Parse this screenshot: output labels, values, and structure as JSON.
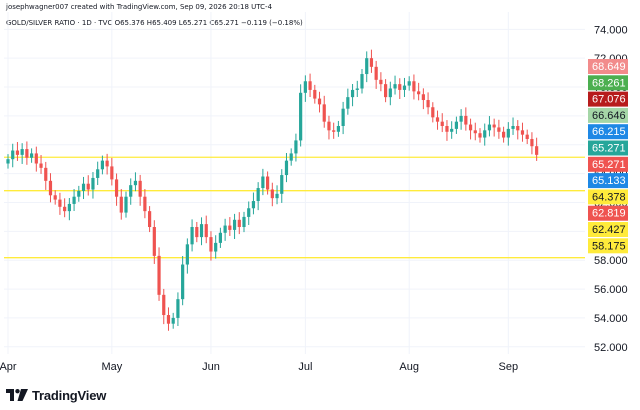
{
  "header": {
    "credit": "josephwagner007 created with TradingView.com, Sep 09, 2026 20:18 UTC-4",
    "symbol": "GOLD/SILVER RATIO · 1D · TVC",
    "ohlc": "O65.376 H65.409 L65.271 C65.271 −0.119 (−0.18%)"
  },
  "brand": {
    "name": "TradingView",
    "logo_icon": "tradingview-logo-icon"
  },
  "chart_data": {
    "type": "candlestick",
    "title": "",
    "ylim": [
      51.5,
      75.2
    ],
    "y_ticks": [
      "52.000",
      "54.000",
      "56.000",
      "58.000",
      "60.000",
      "62.000",
      "64.000",
      "66.000",
      "68.000",
      "70.000",
      "72.000",
      "74.000"
    ],
    "x_labels": [
      {
        "label": "Apr",
        "index": 0
      },
      {
        "label": "May",
        "index": 22
      },
      {
        "label": "Jun",
        "index": 43
      },
      {
        "label": "Jul",
        "index": 63
      },
      {
        "label": "Aug",
        "index": 85
      },
      {
        "label": "Sep",
        "index": 106
      }
    ],
    "up_color": "#26a69a",
    "down_color": "#ef5350",
    "close": [
      65.0,
      65.6,
      65.3,
      65.7,
      65.1,
      65.4,
      64.7,
      64.4,
      63.5,
      62.5,
      62.2,
      61.7,
      61.4,
      61.9,
      62.4,
      62.8,
      63.3,
      62.9,
      63.7,
      64.3,
      64.9,
      64.5,
      63.6,
      62.4,
      61.3,
      62.4,
      63.2,
      63.5,
      62.4,
      61.4,
      60.3,
      58.3,
      55.6,
      54.2,
      53.6,
      54.0,
      55.3,
      57.7,
      59.1,
      60.3,
      59.6,
      60.5,
      59.6,
      58.6,
      59.2,
      59.9,
      60.4,
      60.1,
      60.8,
      60.3,
      61.0,
      61.6,
      62.1,
      63.0,
      63.8,
      62.9,
      62.3,
      62.6,
      63.9,
      64.9,
      65.4,
      66.3,
      69.6,
      70.4,
      69.8,
      69.2,
      68.8,
      67.6,
      67.0,
      66.9,
      67.3,
      68.5,
      69.3,
      69.8,
      69.9,
      70.9,
      72.0,
      71.4,
      70.5,
      70.2,
      69.3,
      69.9,
      70.2,
      69.8,
      70.1,
      70.4,
      69.7,
      69.5,
      69.1,
      68.6,
      67.9,
      67.6,
      67.3,
      66.9,
      67.1,
      67.6,
      68.0,
      67.4,
      67.0,
      66.8,
      66.5,
      67.0,
      67.4,
      67.2,
      66.9,
      66.5,
      67.1,
      67.3,
      67.0,
      66.7,
      66.4,
      65.9,
      65.3
    ],
    "price_labels": [
      {
        "value": 68.649,
        "label": "68.649",
        "color": "#f28b8b"
      },
      {
        "value": 68.261,
        "label": "68.261",
        "color": "#4caf50"
      },
      {
        "value": 67.076,
        "label": "67.076",
        "color": "#b71c1c"
      },
      {
        "value": 66.646,
        "label": "66.646",
        "color": "#a5d6a7"
      },
      {
        "value": 66.215,
        "label": "66.215",
        "color": "#1e88e5"
      },
      {
        "value": 65.271,
        "label": "65.271",
        "color": "#26a69a"
      },
      {
        "value": 65.271,
        "label": "65.271",
        "color": "#ef5350"
      },
      {
        "value": 65.133,
        "label": "65.133",
        "color": "#1e88e5"
      },
      {
        "value": 64.378,
        "label": "64.378",
        "color": "#ffeb3b"
      },
      {
        "value": 62.819,
        "label": "62.819",
        "color": "#ef5350"
      },
      {
        "value": 62.427,
        "label": "62.427",
        "color": "#ffeb3b"
      },
      {
        "value": 58.175,
        "label": "58.175",
        "color": "#ffeb3b"
      }
    ],
    "horizontal_lines": [
      {
        "value": 65.133,
        "color": "#ffeb3b"
      },
      {
        "value": 62.819,
        "color": "#ffeb3b"
      },
      {
        "value": 58.175,
        "color": "#ffeb3b"
      }
    ]
  }
}
